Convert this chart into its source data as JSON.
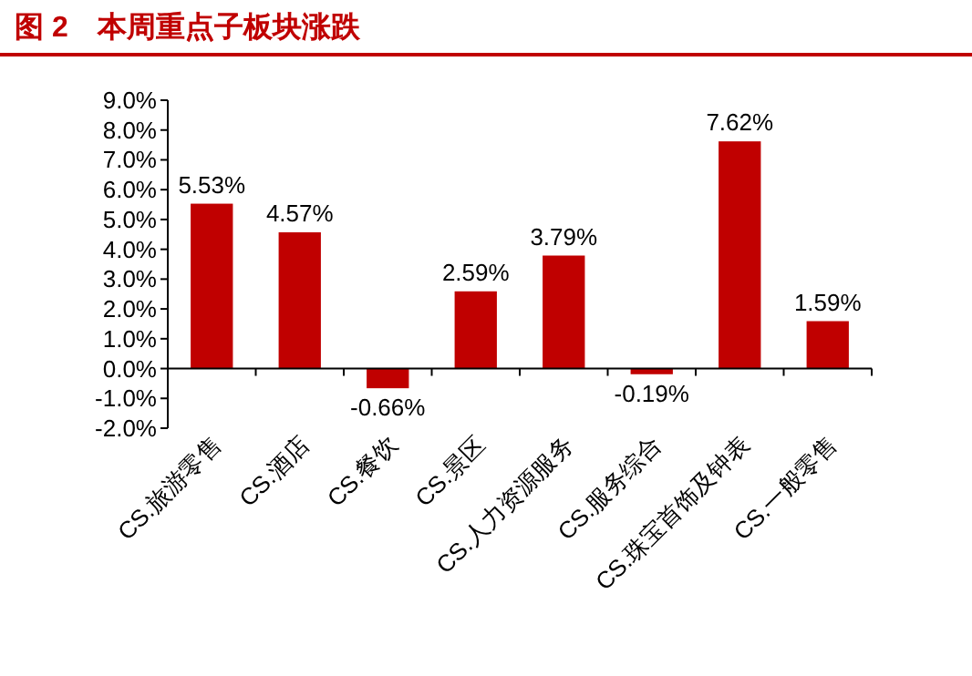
{
  "chart_data": {
    "type": "bar",
    "title": "图 2　本周重点子板块涨跌",
    "categories": [
      "CS.旅游零售",
      "CS.酒店",
      "CS.餐饮",
      "CS.景区",
      "CS.人力资源服务",
      "CS.服务综合",
      "CS.珠宝首饰及钟表",
      "CS.一般零售"
    ],
    "values": [
      5.53,
      4.57,
      -0.66,
      2.59,
      3.79,
      -0.19,
      7.62,
      1.59
    ],
    "value_labels": [
      "5.53%",
      "4.57%",
      "-0.66%",
      "2.59%",
      "3.79%",
      "-0.19%",
      "7.62%",
      "1.59%"
    ],
    "color": "#c00000",
    "ylim": [
      -2,
      9
    ],
    "yticks": [
      {
        "value": -2,
        "label": "-2.0%"
      },
      {
        "value": -1,
        "label": "-1.0%"
      },
      {
        "value": 0,
        "label": "0.0%"
      },
      {
        "value": 1,
        "label": "1.0%"
      },
      {
        "value": 2,
        "label": "2.0%"
      },
      {
        "value": 3,
        "label": "3.0%"
      },
      {
        "value": 4,
        "label": "4.0%"
      },
      {
        "value": 5,
        "label": "5.0%"
      },
      {
        "value": 6,
        "label": "6.0%"
      },
      {
        "value": 7,
        "label": "7.0%"
      },
      {
        "value": 8,
        "label": "8.0%"
      },
      {
        "value": 9,
        "label": "9.0%"
      }
    ]
  }
}
